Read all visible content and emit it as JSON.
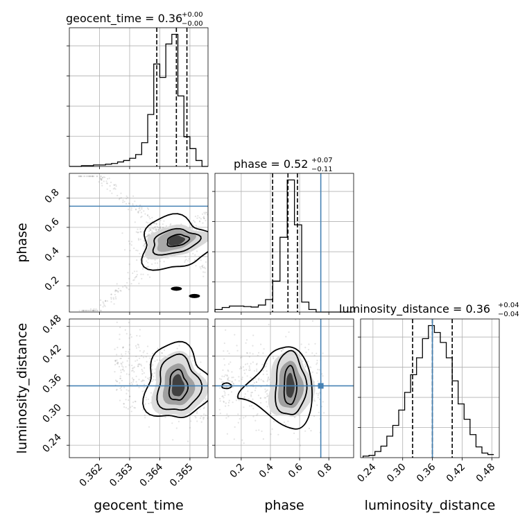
{
  "chart_data": {
    "type": "corner",
    "parameters": [
      "geocent_time",
      "phase",
      "luminosity_distance"
    ],
    "axis_labels": {
      "x": [
        "geocent_time",
        "phase",
        "luminosity_distance"
      ],
      "y": [
        "phase",
        "luminosity_distance"
      ]
    },
    "titles": [
      {
        "param": "geocent_time",
        "text": "geocent_time = 0.36",
        "sup": "+0.00",
        "sub": "−0.00"
      },
      {
        "param": "phase",
        "text": "phase = 0.52",
        "sup": "+0.07",
        "sub": "−0.11"
      },
      {
        "param": "luminosity_distance",
        "text": "luminosity_distance = 0.36",
        "sup": "+0.04",
        "sub": "−0.04"
      }
    ],
    "ranges": {
      "geocent_time": [
        0.361,
        0.3656
      ],
      "phase": [
        0.02,
        0.97
      ],
      "luminosity_distance": [
        0.215,
        0.495
      ]
    },
    "ticks": {
      "geocent_time": {
        "values": [
          0.362,
          0.363,
          0.364,
          0.365
        ],
        "labels": [
          "0.362",
          "0.363",
          "0.364",
          "0.365"
        ]
      },
      "phase": {
        "values": [
          0.2,
          0.4,
          0.6,
          0.8
        ],
        "labels": [
          "0.2",
          "0.4",
          "0.6",
          "0.8"
        ]
      },
      "luminosity_distance": {
        "values": [
          0.24,
          0.3,
          0.36,
          0.42,
          0.48
        ],
        "labels": [
          "0.24",
          "0.30",
          "0.36",
          "0.42",
          "0.48"
        ]
      }
    },
    "quantiles": {
      "geocent_time": [
        0.3639,
        0.36455,
        0.3649
      ],
      "phase": [
        0.415,
        0.52,
        0.585
      ],
      "luminosity_distance": [
        0.32,
        0.36,
        0.4
      ]
    },
    "truths": {
      "phase": 0.745,
      "luminosity_distance": 0.36
    },
    "truth_color": "#4682b4",
    "histograms": {
      "geocent_time": {
        "edges": [
          0.361,
          0.3612,
          0.3614,
          0.3616,
          0.3618,
          0.362,
          0.3622,
          0.3624,
          0.3626,
          0.3628,
          0.363,
          0.3632,
          0.3634,
          0.3636,
          0.3638,
          0.364,
          0.3642,
          0.3644,
          0.3646,
          0.3648,
          0.365,
          0.3652,
          0.3654,
          0.3656
        ],
        "counts": [
          0,
          0,
          1,
          1,
          2,
          2,
          3,
          4,
          6,
          8,
          11,
          16,
          32,
          70,
          138,
          120,
          165,
          178,
          95,
          40,
          24,
          8,
          0
        ]
      },
      "phase": {
        "edges": [
          0.02,
          0.0695,
          0.119,
          0.1685,
          0.218,
          0.2675,
          0.317,
          0.3665,
          0.416,
          0.4655,
          0.515,
          0.5645,
          0.614,
          0.6635,
          0.713,
          0.7625,
          0.812,
          0.8615,
          0.911,
          0.9605
        ],
        "counts": [
          5,
          9,
          12,
          12,
          11,
          10,
          14,
          25,
          62,
          150,
          265,
          175,
          20,
          5,
          0,
          0,
          0,
          0,
          0
        ]
      },
      "luminosity_distance": {
        "edges": [
          0.22,
          0.232,
          0.244,
          0.256,
          0.268,
          0.28,
          0.292,
          0.304,
          0.316,
          0.328,
          0.34,
          0.352,
          0.364,
          0.376,
          0.388,
          0.4,
          0.412,
          0.424,
          0.436,
          0.448,
          0.46,
          0.472,
          0.484
        ],
        "counts": [
          2,
          3,
          8,
          15,
          28,
          42,
          62,
          85,
          108,
          130,
          155,
          172,
          163,
          150,
          130,
          100,
          70,
          50,
          30,
          14,
          6,
          4
        ]
      }
    }
  }
}
